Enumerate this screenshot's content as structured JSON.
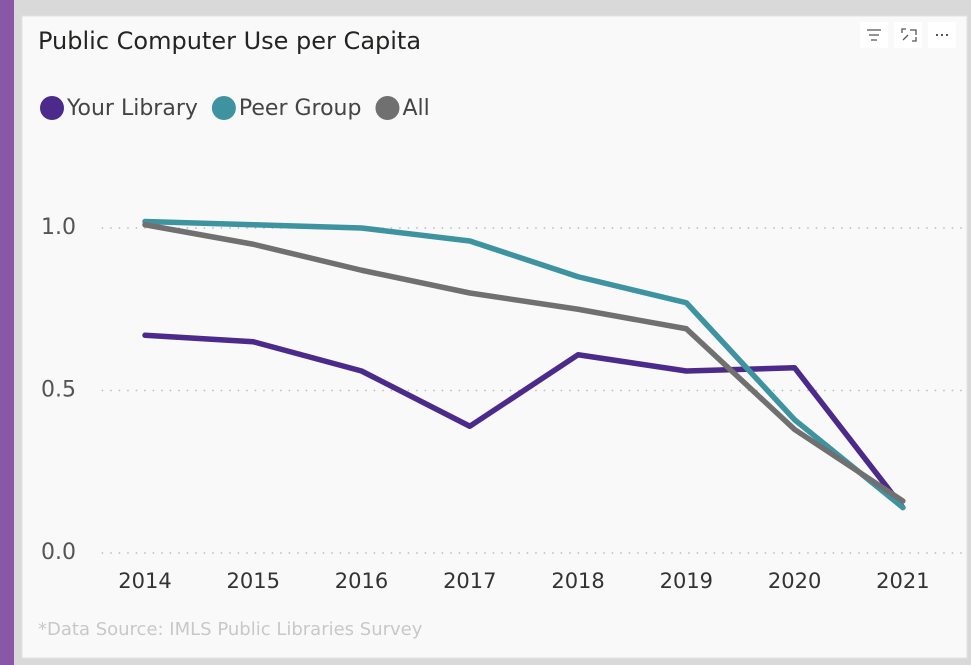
{
  "chart_data": {
    "type": "line",
    "title": "Public Computer Use per Capita",
    "x": [
      2014,
      2015,
      2016,
      2017,
      2018,
      2019,
      2020,
      2021
    ],
    "xlim": [
      2013.6,
      2021.5
    ],
    "xticks": [
      2014,
      2015,
      2016,
      2017,
      2018,
      2019,
      2020,
      2021
    ],
    "ylim": [
      0,
      1.2
    ],
    "yticks": [
      {
        "value": 0,
        "label": "0.0"
      },
      {
        "value": 0.5,
        "label": "0.5"
      },
      {
        "value": 1,
        "label": "1.0"
      }
    ],
    "grid": true,
    "legend": "top-left",
    "series": [
      {
        "name": "Your Library",
        "color": "#4b2a8c",
        "values": [
          0.67,
          0.65,
          0.56,
          0.39,
          0.61,
          0.56,
          0.57,
          0.14
        ]
      },
      {
        "name": "Peer Group",
        "color": "#3d93a0",
        "values": [
          1.02,
          1.01,
          1.0,
          0.96,
          0.85,
          0.77,
          0.41,
          0.14
        ]
      },
      {
        "name": "All",
        "color": "#707070",
        "values": [
          1.01,
          0.95,
          0.87,
          0.8,
          0.75,
          0.69,
          0.38,
          0.16
        ]
      }
    ],
    "footnote": "*Data Source: IMLS Public Libraries Survey"
  }
}
